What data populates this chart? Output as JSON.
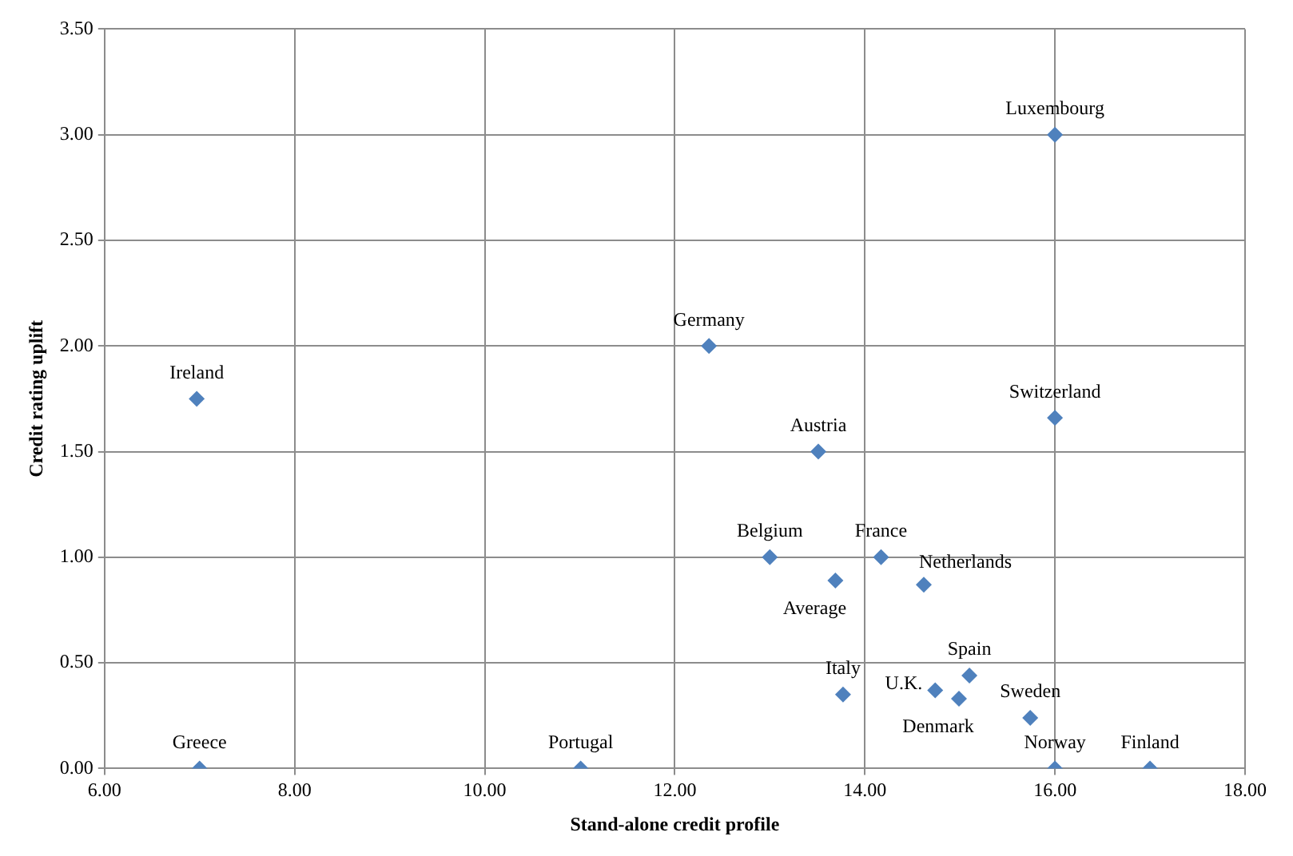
{
  "chart_data": {
    "type": "scatter",
    "xlabel": "Stand-alone credit profile",
    "ylabel": "Credit rating uplift",
    "x": [
      16.0,
      12.36,
      6.97,
      16.0,
      13.51,
      13.0,
      14.17,
      13.69,
      14.62,
      15.1,
      13.77,
      14.74,
      14.99,
      15.74,
      16.0,
      17.0,
      11.01,
      7.0
    ],
    "series": [
      {
        "color": "#4f81bd",
        "values": [
          3.0,
          2.0,
          1.75,
          1.66,
          1.5,
          1.0,
          1.0,
          0.89,
          0.87,
          0.44,
          0.35,
          0.37,
          0.33,
          0.24,
          0.0,
          0.0,
          0.0,
          0.0
        ]
      }
    ],
    "annotations": [
      {
        "text": "Luxembourg",
        "x": 16.0,
        "y": 3.0
      },
      {
        "text": "Germany",
        "x": 12.36,
        "y": 2.0
      },
      {
        "text": "Ireland",
        "x": 6.97,
        "y": 1.75
      },
      {
        "text": "Switzerland",
        "x": 16.0,
        "y": 1.66
      },
      {
        "text": "Austria",
        "x": 13.51,
        "y": 1.5
      },
      {
        "text": "Belgium",
        "x": 13.0,
        "y": 1.0
      },
      {
        "text": "France",
        "x": 14.17,
        "y": 1.0
      },
      {
        "text": "Average",
        "x": 13.69,
        "y": 0.89
      },
      {
        "text": "Netherlands",
        "x": 14.62,
        "y": 0.87
      },
      {
        "text": "Spain",
        "x": 15.1,
        "y": 0.44
      },
      {
        "text": "Italy",
        "x": 13.77,
        "y": 0.35
      },
      {
        "text": "U.K.",
        "x": 14.74,
        "y": 0.37
      },
      {
        "text": "Denmark",
        "x": 14.99,
        "y": 0.33
      },
      {
        "text": "Sweden",
        "x": 15.74,
        "y": 0.24
      },
      {
        "text": "Norway",
        "x": 16.0,
        "y": 0.0
      },
      {
        "text": "Finland",
        "x": 17.0,
        "y": 0.0
      },
      {
        "text": "Portugal",
        "x": 11.01,
        "y": 0.0
      },
      {
        "text": "Greece",
        "x": 7.0,
        "y": 0.0
      }
    ],
    "xlim": [
      6,
      18
    ],
    "ylim": [
      0,
      3.5
    ],
    "xticks": [
      {
        "value": 6,
        "label": "6.00"
      },
      {
        "value": 8,
        "label": "8.00"
      },
      {
        "value": 10,
        "label": "10.00"
      },
      {
        "value": 12,
        "label": "12.00"
      },
      {
        "value": 14,
        "label": "14.00"
      },
      {
        "value": 16,
        "label": "16.00"
      },
      {
        "value": 18,
        "label": "18.00"
      }
    ],
    "yticks": [
      {
        "value": 0,
        "label": "0.00"
      },
      {
        "value": 0.5,
        "label": "0.50"
      },
      {
        "value": 1,
        "label": "1.00"
      },
      {
        "value": 1.5,
        "label": "1.50"
      },
      {
        "value": 2,
        "label": "2.00"
      },
      {
        "value": 2.5,
        "label": "2.50"
      },
      {
        "value": 3,
        "label": "3.00"
      },
      {
        "value": 3.5,
        "label": "3.50"
      }
    ],
    "grid": true,
    "legend": false,
    "marker": "diamond"
  }
}
